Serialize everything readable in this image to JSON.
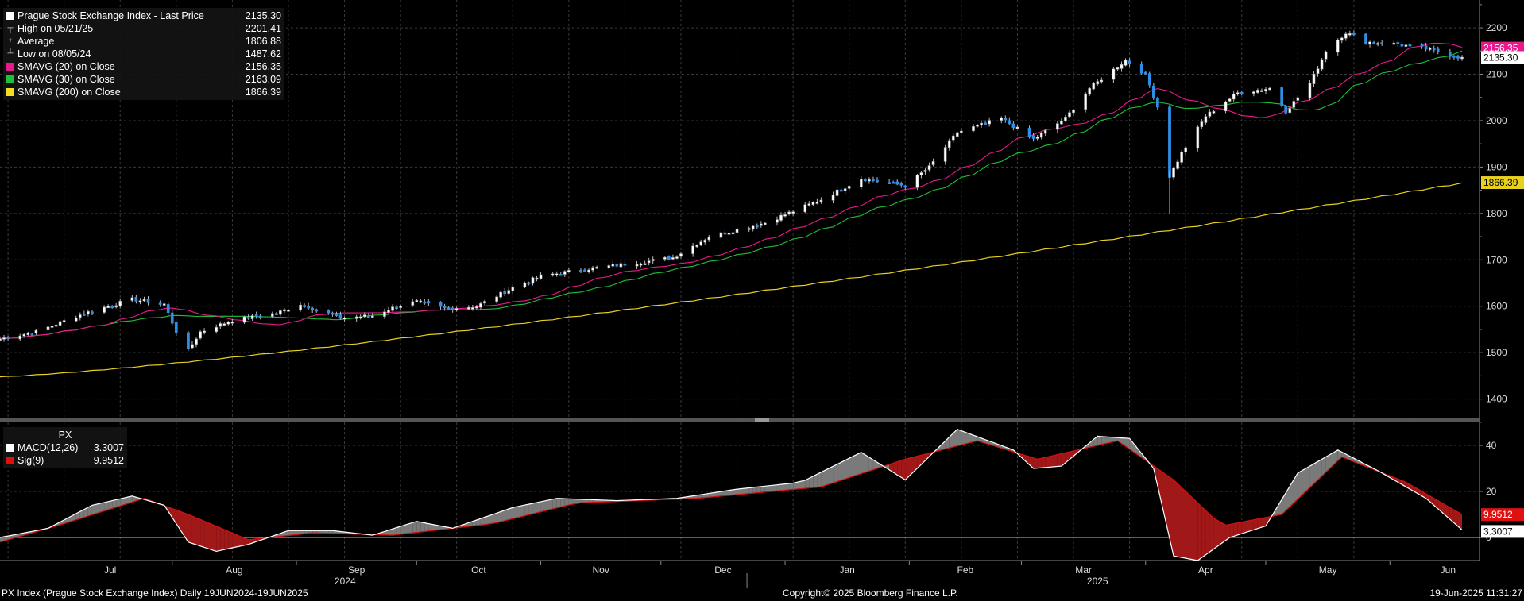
{
  "legend": {
    "items": [
      {
        "label": "Prague Stock Exchange Index - Last Price",
        "value": "2135.30",
        "color": "#ffffff",
        "icon": "square"
      },
      {
        "label": "High on 05/21/25",
        "value": "2201.41",
        "icon": "high-marker-icon"
      },
      {
        "label": "Average",
        "value": "1806.88",
        "icon": "average-marker-icon"
      },
      {
        "label": "Low on 08/05/24",
        "value": "1487.62",
        "icon": "low-marker-icon"
      },
      {
        "label": "SMAVG (20)  on Close",
        "value": "2156.35",
        "color": "#e8198b",
        "icon": "square"
      },
      {
        "label": "SMAVG (30)  on Close",
        "value": "2163.09",
        "color": "#1fbf3a",
        "icon": "square"
      },
      {
        "label": "SMAVG (200)  on Close",
        "value": "1866.39",
        "color": "#f0e020",
        "icon": "square"
      }
    ]
  },
  "macd_legend": {
    "title": "PX",
    "items": [
      {
        "label": "MACD(12,26)",
        "value": "3.3007",
        "color": "#ffffff"
      },
      {
        "label": "Sig(9)",
        "value": "9.9512",
        "color": "#e01010"
      }
    ]
  },
  "footer": {
    "left": "PX Index (Prague Stock Exchange Index)  Daily 19JUN2024-19JUN2025",
    "center": "Copyright© 2025 Bloomberg Finance L.P.",
    "right": "19-Jun-2025 11:31:27"
  },
  "chart_data": [
    {
      "type": "candlestick",
      "series_name": "Prague Stock Exchange Index - Last Price",
      "ylim": [
        1360,
        2260
      ],
      "yticks": [
        1400,
        1500,
        1600,
        1700,
        1800,
        1900,
        2000,
        2100,
        2200
      ],
      "grid": true,
      "legend": "top-left",
      "months": [
        "Jul",
        "Aug",
        "Sep",
        "Oct",
        "Nov",
        "Dec",
        "Jan",
        "Feb",
        "Mar",
        "Apr",
        "May",
        "Jun"
      ],
      "years": [
        "2024",
        "2025"
      ],
      "x_start": "2024-06-19",
      "x_end": "2025-06-19",
      "price_anchors": [
        [
          "2024-06-19",
          1530
        ],
        [
          "2024-06-28",
          1545
        ],
        [
          "2024-07-10",
          1585
        ],
        [
          "2024-07-22",
          1615
        ],
        [
          "2024-07-30",
          1605
        ],
        [
          "2024-08-02",
          1545
        ],
        [
          "2024-08-05",
          1505
        ],
        [
          "2024-08-08",
          1545
        ],
        [
          "2024-08-16",
          1570
        ],
        [
          "2024-08-27",
          1585
        ],
        [
          "2024-09-02",
          1605
        ],
        [
          "2024-09-12",
          1575
        ],
        [
          "2024-09-20",
          1580
        ],
        [
          "2024-09-26",
          1600
        ],
        [
          "2024-10-01",
          1610
        ],
        [
          "2024-10-08",
          1595
        ],
        [
          "2024-10-16",
          1600
        ],
        [
          "2024-10-25",
          1640
        ],
        [
          "2024-11-01",
          1665
        ],
        [
          "2024-11-12",
          1680
        ],
        [
          "2024-11-26",
          1695
        ],
        [
          "2024-12-04",
          1705
        ],
        [
          "2024-12-13",
          1750
        ],
        [
          "2024-12-27",
          1780
        ],
        [
          "2025-01-10",
          1830
        ],
        [
          "2025-01-20",
          1875
        ],
        [
          "2025-01-31",
          1860
        ],
        [
          "2025-02-06",
          1900
        ],
        [
          "2025-02-13",
          1975
        ],
        [
          "2025-02-24",
          2005
        ],
        [
          "2025-03-04",
          1960
        ],
        [
          "2025-03-12",
          2005
        ],
        [
          "2025-03-18",
          2070
        ],
        [
          "2025-03-27",
          2130
        ],
        [
          "2025-04-01",
          2100
        ],
        [
          "2025-04-04",
          2030
        ],
        [
          "2025-04-07",
          1880
        ],
        [
          "2025-04-10",
          1930
        ],
        [
          "2025-04-16",
          2010
        ],
        [
          "2025-04-24",
          2060
        ],
        [
          "2025-05-02",
          2070
        ],
        [
          "2025-05-06",
          2020
        ],
        [
          "2025-05-12",
          2080
        ],
        [
          "2025-05-16",
          2150
        ],
        [
          "2025-05-21",
          2190
        ],
        [
          "2025-05-26",
          2170
        ],
        [
          "2025-06-03",
          2165
        ],
        [
          "2025-06-10",
          2155
        ],
        [
          "2025-06-19",
          2135
        ]
      ],
      "sma200_range": [
        1448,
        1866
      ],
      "last_price_label": "2135.30",
      "sma20_label": "2156.35",
      "sma200_label": "1866.39"
    },
    {
      "type": "line",
      "series": [
        "MACD(12,26)",
        "Sig(9)"
      ],
      "ylim": [
        -10,
        50
      ],
      "yticks": [
        0,
        20,
        40
      ],
      "macd_label": "3.3007",
      "sig_label": "9.9512",
      "macd_anchors": [
        [
          "2024-06-19",
          0
        ],
        [
          "2024-07-01",
          4
        ],
        [
          "2024-07-12",
          14
        ],
        [
          "2024-07-22",
          18
        ],
        [
          "2024-07-30",
          14
        ],
        [
          "2024-08-05",
          -2
        ],
        [
          "2024-08-12",
          -6
        ],
        [
          "2024-08-20",
          -3
        ],
        [
          "2024-08-30",
          3
        ],
        [
          "2024-09-10",
          3
        ],
        [
          "2024-09-20",
          1
        ],
        [
          "2024-10-01",
          7
        ],
        [
          "2024-10-10",
          4
        ],
        [
          "2024-10-25",
          13
        ],
        [
          "2024-11-05",
          17
        ],
        [
          "2024-11-20",
          16
        ],
        [
          "2024-12-05",
          17
        ],
        [
          "2024-12-20",
          21
        ],
        [
          "2025-01-05",
          24
        ],
        [
          "2025-01-20",
          37
        ],
        [
          "2025-01-31",
          25
        ],
        [
          "2025-02-13",
          47
        ],
        [
          "2025-02-27",
          38
        ],
        [
          "2025-03-04",
          30
        ],
        [
          "2025-03-11",
          31
        ],
        [
          "2025-03-20",
          44
        ],
        [
          "2025-03-28",
          43
        ],
        [
          "2025-04-03",
          30
        ],
        [
          "2025-04-08",
          -8
        ],
        [
          "2025-04-14",
          -10
        ],
        [
          "2025-04-22",
          0
        ],
        [
          "2025-05-01",
          5
        ],
        [
          "2025-05-09",
          28
        ],
        [
          "2025-05-19",
          38
        ],
        [
          "2025-05-29",
          29
        ],
        [
          "2025-06-10",
          17
        ],
        [
          "2025-06-19",
          3.3
        ]
      ],
      "sig_anchors": [
        [
          "2024-06-19",
          -2
        ],
        [
          "2024-07-05",
          6
        ],
        [
          "2024-07-25",
          17
        ],
        [
          "2024-08-05",
          10
        ],
        [
          "2024-08-20",
          -1
        ],
        [
          "2024-09-05",
          2
        ],
        [
          "2024-09-25",
          1
        ],
        [
          "2024-10-20",
          6
        ],
        [
          "2024-11-10",
          15
        ],
        [
          "2024-12-10",
          17
        ],
        [
          "2025-01-10",
          22
        ],
        [
          "2025-01-31",
          34
        ],
        [
          "2025-02-18",
          42
        ],
        [
          "2025-03-05",
          34
        ],
        [
          "2025-03-25",
          42
        ],
        [
          "2025-04-08",
          25
        ],
        [
          "2025-04-20",
          5
        ],
        [
          "2025-05-05",
          10
        ],
        [
          "2025-05-20",
          35
        ],
        [
          "2025-06-05",
          24
        ],
        [
          "2025-06-19",
          9.95
        ]
      ]
    }
  ]
}
